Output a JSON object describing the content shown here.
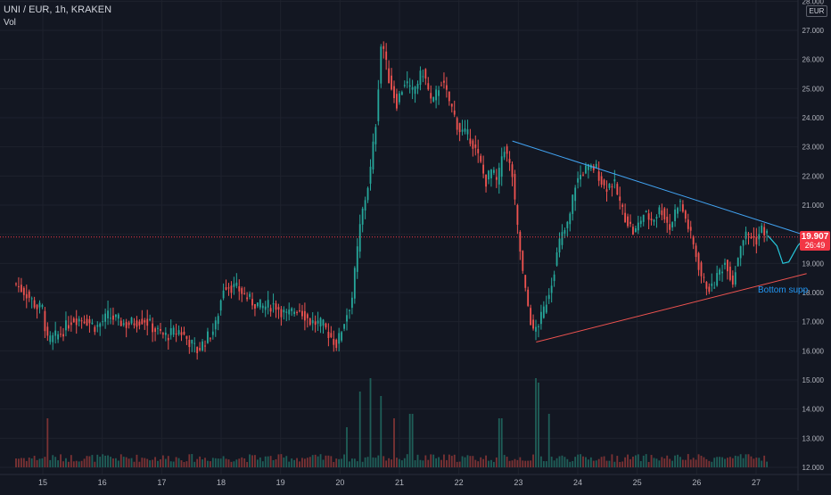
{
  "header": {
    "symbol_line": "UNI / EUR, 1h, KRAKEN",
    "volume_label": "Vol"
  },
  "price_scale": {
    "currency": "EUR",
    "current_price": "19.907",
    "countdown": "26:49"
  },
  "annotation": "Bottom supp",
  "colors": {
    "background": "#131722",
    "grid": "#1e222d",
    "up": "#26a69a",
    "down": "#ef5350",
    "up_volume": "#1f5e58",
    "down_volume": "#7a3234",
    "trendline_upper": "#42a5f5",
    "trendline_lower": "#ef5350",
    "projection": "#26c6da",
    "price_line": "#f23645",
    "axis_text": "#b2b5be"
  },
  "chart_data": {
    "type": "candlestick",
    "title": "UNI / EUR, 1h, KRAKEN",
    "y_axis": {
      "ticks": [
        "28.000",
        "27.000",
        "26.000",
        "25.000",
        "24.000",
        "23.000",
        "22.000",
        "21.000",
        "20.000",
        "19.000",
        "18.000",
        "17.000",
        "16.000",
        "15.000",
        "14.000",
        "13.000",
        "12.000"
      ],
      "range": [
        11.8,
        28.0
      ]
    },
    "x_axis": {
      "ticks": [
        "15",
        "16",
        "17",
        "18",
        "19",
        "20",
        "21",
        "22",
        "23",
        "24",
        "25",
        "26",
        "27"
      ],
      "range_days": [
        14.55,
        27.9
      ]
    },
    "close_path": [
      [
        14.55,
        18.3
      ],
      [
        14.75,
        17.9
      ],
      [
        14.9,
        17.5
      ],
      [
        15.0,
        17.45
      ],
      [
        15.07,
        16.3
      ],
      [
        15.3,
        16.6
      ],
      [
        15.5,
        17.1
      ],
      [
        15.7,
        17.1
      ],
      [
        15.9,
        16.8
      ],
      [
        16.1,
        17.2
      ],
      [
        16.4,
        16.9
      ],
      [
        16.7,
        17.1
      ],
      [
        16.9,
        16.7
      ],
      [
        17.05,
        16.5
      ],
      [
        17.3,
        16.7
      ],
      [
        17.6,
        16.0
      ],
      [
        17.9,
        16.8
      ],
      [
        18.05,
        18.3
      ],
      [
        18.3,
        18.1
      ],
      [
        18.5,
        17.7
      ],
      [
        18.7,
        17.5
      ],
      [
        18.9,
        17.6
      ],
      [
        19.1,
        17.2
      ],
      [
        19.3,
        17.5
      ],
      [
        19.5,
        17.0
      ],
      [
        19.7,
        16.9
      ],
      [
        19.95,
        16.2
      ],
      [
        20.05,
        16.9
      ],
      [
        20.2,
        17.8
      ],
      [
        20.35,
        20.5
      ],
      [
        20.5,
        22.0
      ],
      [
        20.6,
        23.8
      ],
      [
        20.7,
        26.8
      ],
      [
        20.8,
        25.5
      ],
      [
        20.95,
        24.5
      ],
      [
        21.1,
        25.3
      ],
      [
        21.2,
        24.8
      ],
      [
        21.4,
        25.6
      ],
      [
        21.55,
        24.4
      ],
      [
        21.7,
        25.3
      ],
      [
        21.85,
        24.5
      ],
      [
        22.0,
        23.6
      ],
      [
        22.2,
        23.3
      ],
      [
        22.35,
        22.5
      ],
      [
        22.45,
        21.8
      ],
      [
        22.55,
        22.2
      ],
      [
        22.65,
        21.7
      ],
      [
        22.75,
        23.1
      ],
      [
        22.9,
        22.0
      ],
      [
        22.95,
        20.8
      ],
      [
        23.1,
        18.2
      ],
      [
        23.25,
        16.6
      ],
      [
        23.4,
        17.2
      ],
      [
        23.55,
        18.3
      ],
      [
        23.7,
        19.8
      ],
      [
        23.85,
        20.4
      ],
      [
        23.95,
        21.7
      ],
      [
        24.1,
        22.2
      ],
      [
        24.3,
        22.3
      ],
      [
        24.45,
        21.6
      ],
      [
        24.6,
        21.8
      ],
      [
        24.75,
        20.8
      ],
      [
        24.95,
        20.0
      ],
      [
        25.1,
        20.7
      ],
      [
        25.25,
        20.5
      ],
      [
        25.4,
        20.9
      ],
      [
        25.55,
        20.2
      ],
      [
        25.7,
        21.2
      ],
      [
        25.85,
        20.3
      ],
      [
        26.0,
        19.2
      ],
      [
        26.1,
        18.4
      ],
      [
        26.25,
        18.1
      ],
      [
        26.4,
        18.8
      ],
      [
        26.5,
        19.1
      ],
      [
        26.6,
        18.3
      ],
      [
        26.75,
        19.8
      ],
      [
        26.85,
        20.0
      ],
      [
        27.0,
        19.8
      ],
      [
        27.1,
        20.2
      ],
      [
        27.2,
        19.95
      ]
    ],
    "trendlines": {
      "upper": {
        "from": [
          22.9,
          23.2
        ],
        "to": [
          27.85,
          19.95
        ]
      },
      "lower": {
        "from": [
          23.3,
          16.3
        ],
        "to": [
          27.85,
          18.65
        ]
      }
    },
    "projection_path": [
      [
        27.2,
        19.95
      ],
      [
        27.35,
        19.6
      ],
      [
        27.45,
        19.0
      ],
      [
        27.55,
        19.05
      ],
      [
        27.7,
        19.6
      ],
      [
        27.85,
        19.95
      ]
    ],
    "volume_spikes": [
      [
        15.07,
        0.55
      ],
      [
        20.1,
        0.45
      ],
      [
        20.35,
        0.85
      ],
      [
        20.5,
        1.0
      ],
      [
        20.7,
        0.8
      ],
      [
        20.9,
        0.55
      ],
      [
        21.2,
        0.6
      ],
      [
        22.7,
        0.55
      ],
      [
        23.3,
        1.0
      ],
      [
        23.35,
        0.95
      ],
      [
        23.5,
        0.6
      ]
    ],
    "grid": true,
    "legend_position": "top-left"
  }
}
